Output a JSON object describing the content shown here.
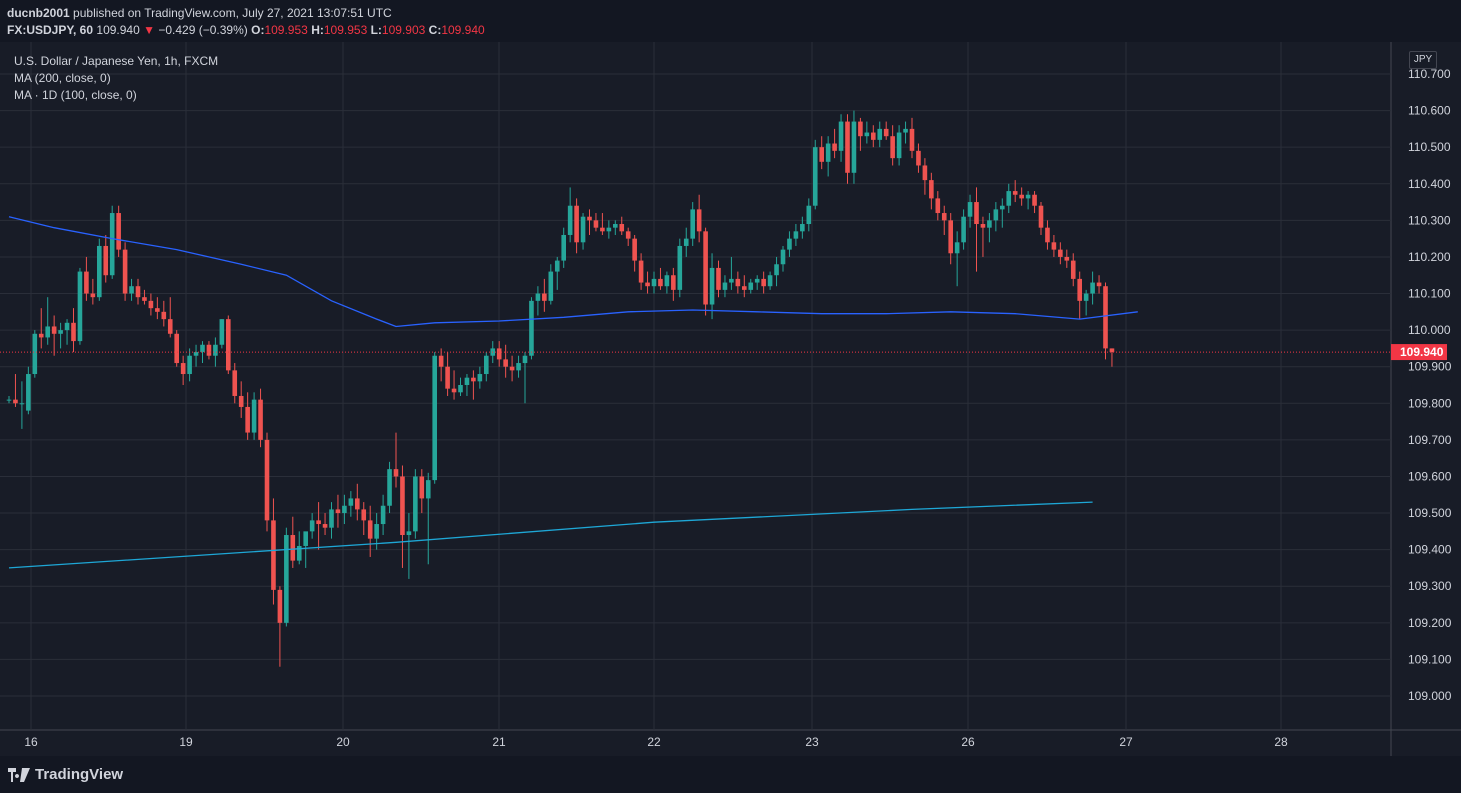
{
  "header": {
    "publisher": "ducnb2001",
    "published_text": "published on TradingView.com, July 27, 2021 13:07:51 UTC",
    "symbol": "FX:USDJPY, 60",
    "last": "109.940",
    "change_arrow": "▼",
    "change": "−0.429 (−0.39%)",
    "o_label": "O:",
    "o_val": "109.953",
    "h_label": "H:",
    "h_val": "109.953",
    "l_label": "L:",
    "l_val": "109.903",
    "c_label": "C:",
    "c_val": "109.940"
  },
  "legend": {
    "line1": "U.S. Dollar / Japanese Yen, 1h, FXCM",
    "line2": "MA (200, close, 0)",
    "line3": "MA · 1D (100, close, 0)"
  },
  "currency": "JPY",
  "footer": {
    "brand": "TradingView"
  },
  "colors": {
    "up": "#26a69a",
    "down": "#ef5350",
    "ma200": "#2962ff",
    "ma1d": "#1ea7d6",
    "grid": "#2a2e39",
    "price_label_bg": "#f23645"
  },
  "chart_data": {
    "type": "candlestick",
    "price_axis": {
      "ticks": [
        "110.700",
        "110.600",
        "110.500",
        "110.400",
        "110.300",
        "110.200",
        "110.100",
        "110.000",
        "109.900",
        "109.800",
        "109.700",
        "109.600",
        "109.500",
        "109.400",
        "109.300",
        "109.200",
        "109.100",
        "109.000"
      ],
      "range": [
        108.95,
        110.74
      ]
    },
    "time_axis": [
      "16",
      "19",
      "20",
      "21",
      "22",
      "23",
      "26",
      "27",
      "28"
    ],
    "last_price": "109.940",
    "candles": [
      [
        109.81,
        109.82,
        109.8,
        109.81
      ],
      [
        109.81,
        109.88,
        109.79,
        109.8
      ],
      [
        109.8,
        109.86,
        109.73,
        109.8
      ],
      [
        109.78,
        109.9,
        109.77,
        109.88
      ],
      [
        109.88,
        110.0,
        109.87,
        109.99
      ],
      [
        109.99,
        110.06,
        109.95,
        109.98
      ],
      [
        109.98,
        110.09,
        109.96,
        110.01
      ],
      [
        110.01,
        110.04,
        109.93,
        109.99
      ],
      [
        109.99,
        110.02,
        109.95,
        110.0
      ],
      [
        110.0,
        110.03,
        109.96,
        110.02
      ],
      [
        110.02,
        110.06,
        109.94,
        109.97
      ],
      [
        109.97,
        110.17,
        109.96,
        110.16
      ],
      [
        110.16,
        110.2,
        110.08,
        110.1
      ],
      [
        110.1,
        110.14,
        110.07,
        110.09
      ],
      [
        110.09,
        110.25,
        110.08,
        110.23
      ],
      [
        110.23,
        110.26,
        110.13,
        110.15
      ],
      [
        110.15,
        110.34,
        110.14,
        110.32
      ],
      [
        110.32,
        110.34,
        110.2,
        110.22
      ],
      [
        110.22,
        110.24,
        110.08,
        110.1
      ],
      [
        110.1,
        110.14,
        110.08,
        110.12
      ],
      [
        110.12,
        110.14,
        110.07,
        110.09
      ],
      [
        110.09,
        110.11,
        110.07,
        110.08
      ],
      [
        110.08,
        110.1,
        110.04,
        110.06
      ],
      [
        110.06,
        110.09,
        110.03,
        110.05
      ],
      [
        110.05,
        110.08,
        110.01,
        110.03
      ],
      [
        110.03,
        110.09,
        109.98,
        109.99
      ],
      [
        109.99,
        110.0,
        109.9,
        109.91
      ],
      [
        109.91,
        109.93,
        109.85,
        109.88
      ],
      [
        109.88,
        109.95,
        109.86,
        109.93
      ],
      [
        109.93,
        109.96,
        109.9,
        109.94
      ],
      [
        109.94,
        109.97,
        109.91,
        109.96
      ],
      [
        109.96,
        109.97,
        109.92,
        109.93
      ],
      [
        109.93,
        109.98,
        109.9,
        109.96
      ],
      [
        109.96,
        110.03,
        109.95,
        110.03
      ],
      [
        110.03,
        110.04,
        109.88,
        109.89
      ],
      [
        109.89,
        109.91,
        109.8,
        109.82
      ],
      [
        109.82,
        109.86,
        109.76,
        109.79
      ],
      [
        109.79,
        109.83,
        109.7,
        109.72
      ],
      [
        109.72,
        109.83,
        109.7,
        109.81
      ],
      [
        109.81,
        109.84,
        109.68,
        109.7
      ],
      [
        109.7,
        109.72,
        109.45,
        109.48
      ],
      [
        109.48,
        109.54,
        109.25,
        109.29
      ],
      [
        109.29,
        109.3,
        109.08,
        109.2
      ],
      [
        109.2,
        109.46,
        109.19,
        109.44
      ],
      [
        109.44,
        109.49,
        109.35,
        109.37
      ],
      [
        109.37,
        109.45,
        109.36,
        109.41
      ],
      [
        109.41,
        109.44,
        109.35,
        109.45
      ],
      [
        109.45,
        109.5,
        109.43,
        109.48
      ],
      [
        109.48,
        109.53,
        109.4,
        109.47
      ],
      [
        109.47,
        109.5,
        109.44,
        109.46
      ],
      [
        109.46,
        109.53,
        109.43,
        109.51
      ],
      [
        109.51,
        109.55,
        109.46,
        109.5
      ],
      [
        109.5,
        109.55,
        109.47,
        109.52
      ],
      [
        109.52,
        109.56,
        109.49,
        109.54
      ],
      [
        109.54,
        109.58,
        109.48,
        109.51
      ],
      [
        109.51,
        109.53,
        109.44,
        109.48
      ],
      [
        109.48,
        109.52,
        109.38,
        109.43
      ],
      [
        109.43,
        109.5,
        109.4,
        109.47
      ],
      [
        109.47,
        109.55,
        109.44,
        109.52
      ],
      [
        109.52,
        109.64,
        109.5,
        109.62
      ],
      [
        109.62,
        109.72,
        109.57,
        109.6
      ],
      [
        109.6,
        109.63,
        109.35,
        109.44
      ],
      [
        109.44,
        109.5,
        109.32,
        109.45
      ],
      [
        109.45,
        109.62,
        109.43,
        109.6
      ],
      [
        109.6,
        109.62,
        109.5,
        109.54
      ],
      [
        109.54,
        109.61,
        109.36,
        109.59
      ],
      [
        109.59,
        109.94,
        109.58,
        109.93
      ],
      [
        109.93,
        109.95,
        109.86,
        109.9
      ],
      [
        109.9,
        109.94,
        109.82,
        109.84
      ],
      [
        109.84,
        109.89,
        109.81,
        109.83
      ],
      [
        109.83,
        109.87,
        109.82,
        109.85
      ],
      [
        109.85,
        109.88,
        109.82,
        109.87
      ],
      [
        109.87,
        109.89,
        109.81,
        109.86
      ],
      [
        109.86,
        109.9,
        109.84,
        109.88
      ],
      [
        109.88,
        109.94,
        109.86,
        109.93
      ],
      [
        109.93,
        109.97,
        109.91,
        109.95
      ],
      [
        109.95,
        109.97,
        109.9,
        109.92
      ],
      [
        109.92,
        109.96,
        109.87,
        109.9
      ],
      [
        109.9,
        109.93,
        109.86,
        109.89
      ],
      [
        109.89,
        109.93,
        109.87,
        109.91
      ],
      [
        109.91,
        109.94,
        109.8,
        109.93
      ],
      [
        109.93,
        110.09,
        109.92,
        110.08
      ],
      [
        110.08,
        110.12,
        110.04,
        110.1
      ],
      [
        110.1,
        110.14,
        110.05,
        110.08
      ],
      [
        110.08,
        110.18,
        110.07,
        110.16
      ],
      [
        110.16,
        110.2,
        110.11,
        110.19
      ],
      [
        110.19,
        110.28,
        110.17,
        110.26
      ],
      [
        110.26,
        110.39,
        110.24,
        110.34
      ],
      [
        110.34,
        110.36,
        110.21,
        110.24
      ],
      [
        110.24,
        110.32,
        110.22,
        110.31
      ],
      [
        110.31,
        110.33,
        110.26,
        110.3
      ],
      [
        110.3,
        110.32,
        110.27,
        110.28
      ],
      [
        110.28,
        110.32,
        110.26,
        110.27
      ],
      [
        110.27,
        110.3,
        110.25,
        110.28
      ],
      [
        110.28,
        110.3,
        110.26,
        110.29
      ],
      [
        110.29,
        110.31,
        110.26,
        110.27
      ],
      [
        110.27,
        110.28,
        110.23,
        110.25
      ],
      [
        110.25,
        110.26,
        110.16,
        110.19
      ],
      [
        110.19,
        110.21,
        110.11,
        110.13
      ],
      [
        110.13,
        110.16,
        110.1,
        110.12
      ],
      [
        110.12,
        110.16,
        110.1,
        110.14
      ],
      [
        110.14,
        110.17,
        110.11,
        110.12
      ],
      [
        110.12,
        110.16,
        110.1,
        110.15
      ],
      [
        110.15,
        110.17,
        110.08,
        110.11
      ],
      [
        110.11,
        110.25,
        110.09,
        110.23
      ],
      [
        110.23,
        110.28,
        110.2,
        110.25
      ],
      [
        110.25,
        110.35,
        110.23,
        110.33
      ],
      [
        110.33,
        110.37,
        110.24,
        110.27
      ],
      [
        110.27,
        110.28,
        110.04,
        110.07
      ],
      [
        110.07,
        110.21,
        110.03,
        110.17
      ],
      [
        110.17,
        110.19,
        110.09,
        110.11
      ],
      [
        110.11,
        110.15,
        110.09,
        110.13
      ],
      [
        110.13,
        110.2,
        110.11,
        110.14
      ],
      [
        110.14,
        110.16,
        110.1,
        110.12
      ],
      [
        110.12,
        110.15,
        110.09,
        110.11
      ],
      [
        110.11,
        110.14,
        110.1,
        110.13
      ],
      [
        110.13,
        110.15,
        110.11,
        110.14
      ],
      [
        110.14,
        110.16,
        110.1,
        110.12
      ],
      [
        110.12,
        110.16,
        110.11,
        110.15
      ],
      [
        110.15,
        110.2,
        110.12,
        110.18
      ],
      [
        110.18,
        110.23,
        110.16,
        110.22
      ],
      [
        110.22,
        110.27,
        110.2,
        110.25
      ],
      [
        110.25,
        110.29,
        110.23,
        110.27
      ],
      [
        110.27,
        110.31,
        110.25,
        110.29
      ],
      [
        110.29,
        110.36,
        110.27,
        110.34
      ],
      [
        110.34,
        110.52,
        110.33,
        110.5
      ],
      [
        110.5,
        110.53,
        110.44,
        110.46
      ],
      [
        110.46,
        110.53,
        110.42,
        110.51
      ],
      [
        110.51,
        110.55,
        110.47,
        110.49
      ],
      [
        110.49,
        110.59,
        110.46,
        110.57
      ],
      [
        110.57,
        110.59,
        110.4,
        110.43
      ],
      [
        110.43,
        110.6,
        110.4,
        110.57
      ],
      [
        110.57,
        110.58,
        110.49,
        110.53
      ],
      [
        110.53,
        110.57,
        110.51,
        110.54
      ],
      [
        110.54,
        110.56,
        110.5,
        110.52
      ],
      [
        110.52,
        110.57,
        110.5,
        110.55
      ],
      [
        110.55,
        110.57,
        110.52,
        110.53
      ],
      [
        110.53,
        110.56,
        110.45,
        110.47
      ],
      [
        110.47,
        110.56,
        110.45,
        110.54
      ],
      [
        110.54,
        110.57,
        110.51,
        110.55
      ],
      [
        110.55,
        110.58,
        110.47,
        110.49
      ],
      [
        110.49,
        110.51,
        110.43,
        110.45
      ],
      [
        110.45,
        110.47,
        110.37,
        110.41
      ],
      [
        110.41,
        110.43,
        110.33,
        110.36
      ],
      [
        110.36,
        110.38,
        110.3,
        110.32
      ],
      [
        110.32,
        110.34,
        110.26,
        110.3
      ],
      [
        110.3,
        110.32,
        110.18,
        110.21
      ],
      [
        110.21,
        110.27,
        110.12,
        110.24
      ],
      [
        110.24,
        110.33,
        110.22,
        110.31
      ],
      [
        110.31,
        110.37,
        110.28,
        110.35
      ],
      [
        110.35,
        110.39,
        110.16,
        110.29
      ],
      [
        110.29,
        110.31,
        110.2,
        110.28
      ],
      [
        110.28,
        110.32,
        110.24,
        110.3
      ],
      [
        110.3,
        110.35,
        110.27,
        110.33
      ],
      [
        110.33,
        110.36,
        110.28,
        110.34
      ],
      [
        110.34,
        110.4,
        110.32,
        110.38
      ],
      [
        110.38,
        110.41,
        110.35,
        110.37
      ],
      [
        110.37,
        110.39,
        110.34,
        110.36
      ],
      [
        110.36,
        110.38,
        110.33,
        110.37
      ],
      [
        110.37,
        110.38,
        110.32,
        110.34
      ],
      [
        110.34,
        110.35,
        110.26,
        110.28
      ],
      [
        110.28,
        110.3,
        110.22,
        110.24
      ],
      [
        110.24,
        110.26,
        110.2,
        110.22
      ],
      [
        110.22,
        110.24,
        110.18,
        110.2
      ],
      [
        110.2,
        110.22,
        110.17,
        110.19
      ],
      [
        110.19,
        110.21,
        110.12,
        110.14
      ],
      [
        110.14,
        110.16,
        110.03,
        110.08
      ],
      [
        110.08,
        110.11,
        110.04,
        110.1
      ],
      [
        110.1,
        110.16,
        110.07,
        110.13
      ],
      [
        110.13,
        110.15,
        110.1,
        110.12
      ],
      [
        110.12,
        110.13,
        109.92,
        109.95
      ],
      [
        109.95,
        109.95,
        109.9,
        109.94
      ]
    ],
    "ma200": [
      [
        0,
        110.31
      ],
      [
        7,
        110.28
      ],
      [
        16,
        110.25
      ],
      [
        26,
        110.22
      ],
      [
        36,
        110.18
      ],
      [
        43,
        110.15
      ],
      [
        50,
        110.08
      ],
      [
        57,
        110.03
      ],
      [
        60,
        110.01
      ],
      [
        66,
        110.02
      ],
      [
        76,
        110.025
      ],
      [
        86,
        110.035
      ],
      [
        96,
        110.05
      ],
      [
        106,
        110.055
      ],
      [
        116,
        110.05
      ],
      [
        126,
        110.045
      ],
      [
        136,
        110.045
      ],
      [
        146,
        110.05
      ],
      [
        156,
        110.045
      ],
      [
        166,
        110.03
      ],
      [
        175,
        110.05
      ]
    ],
    "ma1d": [
      [
        0,
        109.35
      ],
      [
        60,
        109.42
      ],
      [
        100,
        109.475
      ],
      [
        140,
        109.51
      ],
      [
        168,
        109.53
      ]
    ]
  }
}
